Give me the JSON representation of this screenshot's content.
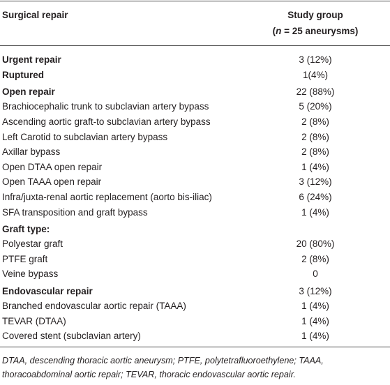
{
  "header": {
    "col1": "Surgical repair",
    "col2": "Study group",
    "col2_sub": [
      "(",
      "n",
      " = 25 aneurysms)"
    ]
  },
  "groups": [
    {
      "rows": [
        {
          "label": "Urgent repair",
          "value": "3 (12%)",
          "bold": true
        },
        {
          "label": "Ruptured",
          "value": "1(4%)",
          "bold": true
        }
      ]
    },
    {
      "rows": [
        {
          "label": "Open repair",
          "value": "22 (88%)",
          "bold": true
        },
        {
          "label": "Brachiocephalic trunk to subclavian artery bypass",
          "value": "5 (20%)",
          "bold": false
        },
        {
          "label": "Ascending aortic graft-to subclavian artery bypass",
          "value": "2 (8%)",
          "bold": false
        },
        {
          "label": "Left Carotid to subclavian artery bypass",
          "value": "2 (8%)",
          "bold": false
        },
        {
          "label": "Axillar bypass",
          "value": "2 (8%)",
          "bold": false
        },
        {
          "label": "Open DTAA open repair",
          "value": "1 (4%)",
          "bold": false
        },
        {
          "label": "Open TAAA open repair",
          "value": "3 (12%)",
          "bold": false
        },
        {
          "label": "Infra/juxta-renal aortic replacement (aorto bis-iliac)",
          "value": "6 (24%)",
          "bold": false
        },
        {
          "label": "SFA transposition and graft bypass",
          "value": "1 (4%)",
          "bold": false
        }
      ]
    },
    {
      "rows": [
        {
          "label": "Graft type:",
          "bold": true
        },
        {
          "label": "Polyestar graft",
          "value": "20 (80%)",
          "bold": false
        },
        {
          "label": "PTFE graft",
          "value": "2 (8%)",
          "bold": false
        },
        {
          "label": "Veine bypass",
          "value": "0",
          "bold": false
        }
      ]
    },
    {
      "rows": [
        {
          "label": "Endovascular repair",
          "value": "3 (12%)",
          "bold": true
        },
        {
          "label": "Branched endovascular aortic repair (TAAA)",
          "value": "1 (4%)",
          "bold": false
        },
        {
          "label": "TEVAR (DTAA)",
          "value": "1 (4%)",
          "bold": false
        },
        {
          "label": "Covered stent (subclavian artery)",
          "value": "1 (4%)",
          "bold": false
        }
      ]
    }
  ],
  "footnote": "DTAA, descending thoracic aortic aneurysm; PTFE, polytetrafluoroethylene; TAAA, thoracoabdominal aortic repair; TEVAR, thoracic endovascular aortic repair."
}
